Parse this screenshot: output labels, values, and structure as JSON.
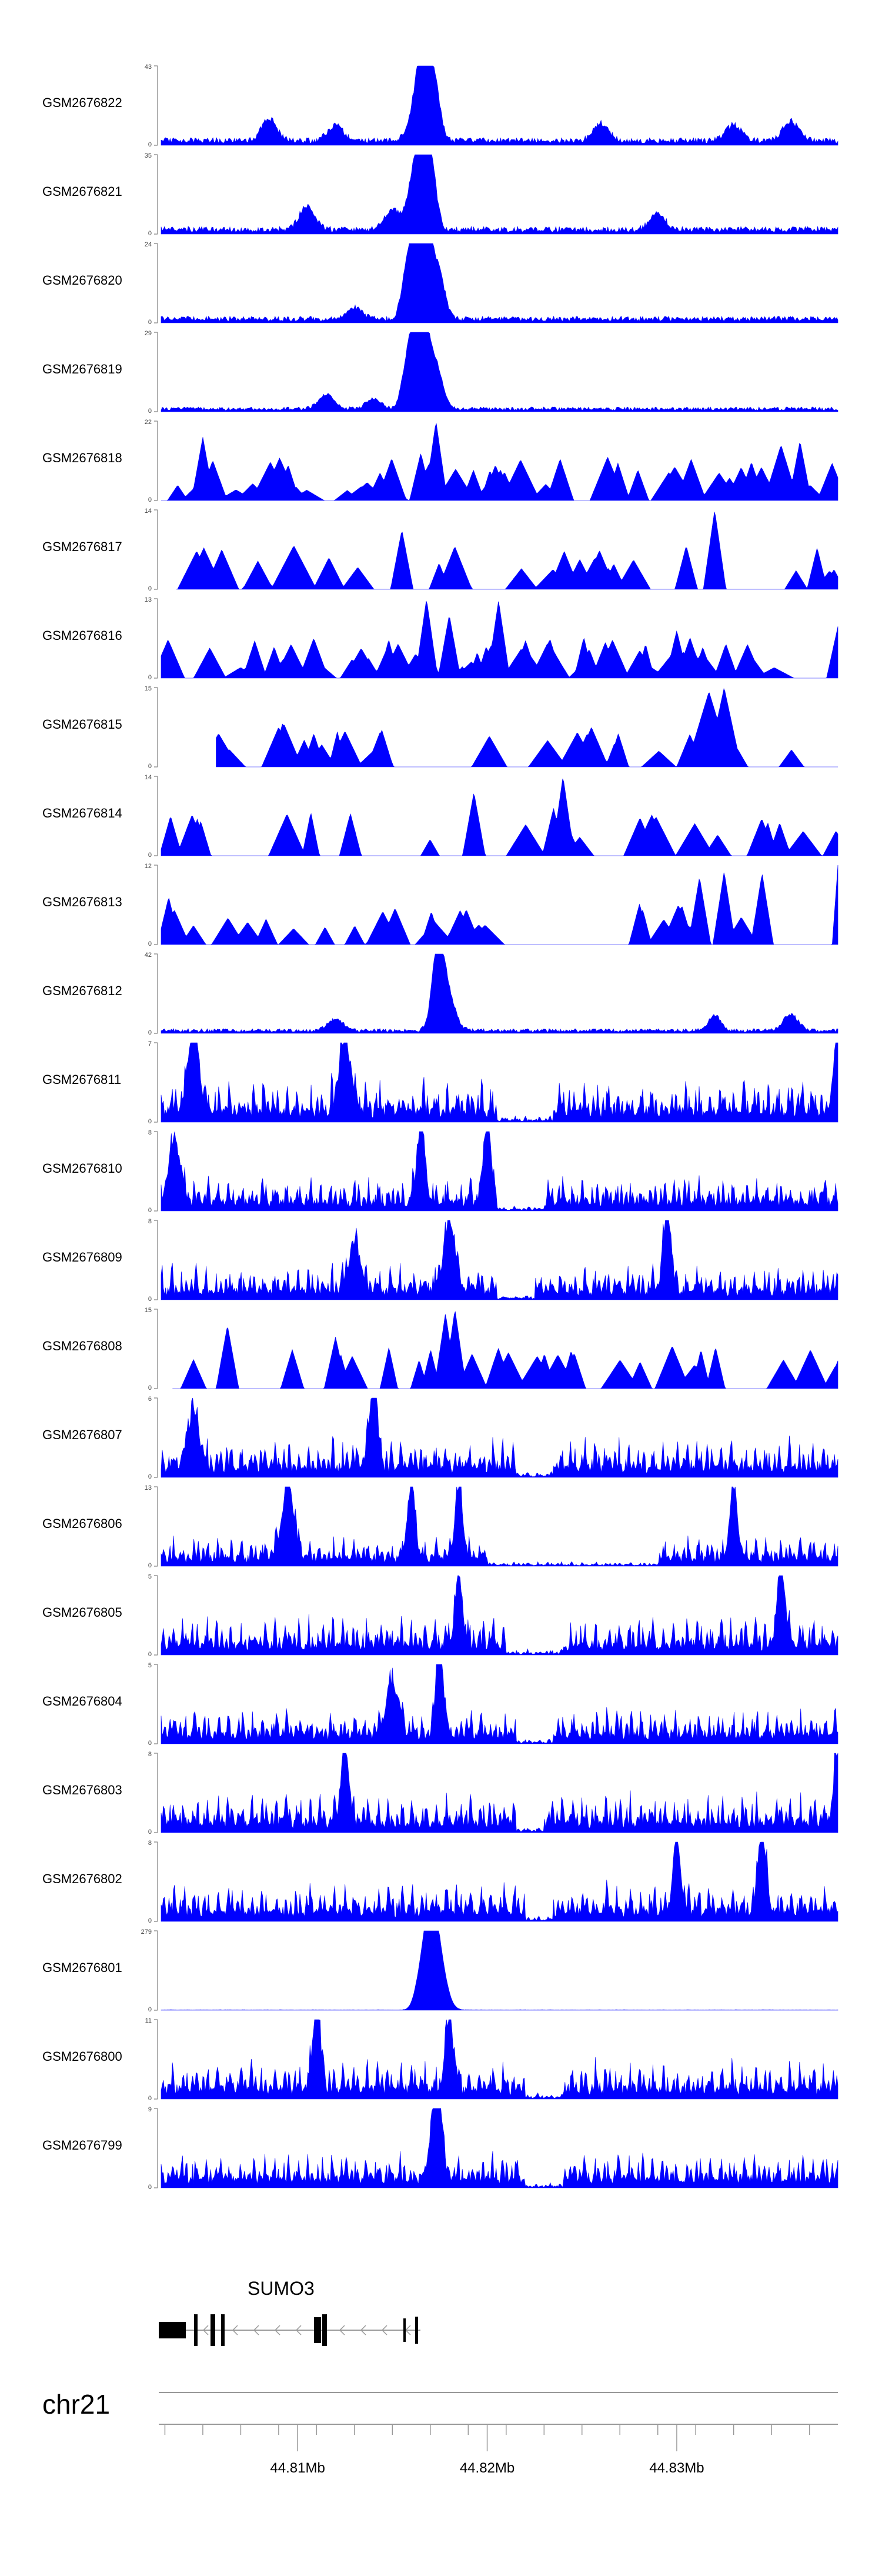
{
  "chart_data": {
    "type": "area",
    "title": "",
    "xlabel": "",
    "ylabel": "",
    "xlim": [
      44.8028,
      44.8385
    ],
    "x_ticks": [
      44.81,
      44.82,
      44.83
    ],
    "x_tick_labels": [
      "44.81Mb",
      "44.82Mb",
      "44.83Mb"
    ],
    "chromosome": "chr21",
    "gene": {
      "name": "SUMO3"
    },
    "grid": false,
    "legend": "none",
    "fill_color": "#0000ff",
    "tracks": [
      {
        "name": "GSM2676822",
        "ymax": 43,
        "ymax_label": "43",
        "ymin_label": "0",
        "peaks": [
          {
            "x": 44.8166,
            "h": 1.0,
            "w": 0.0003
          },
          {
            "x": 44.8172,
            "h": 0.75,
            "w": 0.0003
          },
          {
            "x": 44.8162,
            "h": 0.35,
            "w": 0.0004
          },
          {
            "x": 44.8085,
            "h": 0.28,
            "w": 0.0004
          },
          {
            "x": 44.812,
            "h": 0.2,
            "w": 0.0004
          },
          {
            "x": 44.826,
            "h": 0.22,
            "w": 0.0004
          },
          {
            "x": 44.833,
            "h": 0.2,
            "w": 0.0004
          },
          {
            "x": 44.836,
            "h": 0.25,
            "w": 0.0004
          }
        ],
        "baseline": 0.08,
        "seed": 11
      },
      {
        "name": "GSM2676821",
        "ymax": 35,
        "ymax_label": "35",
        "ymin_label": "0",
        "peaks": [
          {
            "x": 44.8165,
            "h": 1.0,
            "w": 0.0003
          },
          {
            "x": 44.817,
            "h": 0.85,
            "w": 0.0003
          },
          {
            "x": 44.816,
            "h": 0.45,
            "w": 0.0003
          },
          {
            "x": 44.8105,
            "h": 0.3,
            "w": 0.0004
          },
          {
            "x": 44.815,
            "h": 0.25,
            "w": 0.0004
          },
          {
            "x": 44.829,
            "h": 0.2,
            "w": 0.0004
          }
        ],
        "baseline": 0.08,
        "seed": 23
      },
      {
        "name": "GSM2676820",
        "ymax": 24,
        "ymax_label": "24",
        "ymin_label": "0",
        "peaks": [
          {
            "x": 44.8163,
            "h": 1.0,
            "w": 0.0003
          },
          {
            "x": 44.8169,
            "h": 0.95,
            "w": 0.0003
          },
          {
            "x": 44.8158,
            "h": 0.6,
            "w": 0.0003
          },
          {
            "x": 44.8175,
            "h": 0.5,
            "w": 0.0003
          },
          {
            "x": 44.813,
            "h": 0.15,
            "w": 0.0004
          }
        ],
        "baseline": 0.07,
        "seed": 37
      },
      {
        "name": "GSM2676819",
        "ymax": 29,
        "ymax_label": "29",
        "ymin_label": "0",
        "peaks": [
          {
            "x": 44.8163,
            "h": 1.0,
            "w": 0.0003
          },
          {
            "x": 44.8168,
            "h": 0.8,
            "w": 0.0003
          },
          {
            "x": 44.8158,
            "h": 0.55,
            "w": 0.0003
          },
          {
            "x": 44.8174,
            "h": 0.45,
            "w": 0.0003
          },
          {
            "x": 44.8115,
            "h": 0.18,
            "w": 0.0004
          },
          {
            "x": 44.814,
            "h": 0.12,
            "w": 0.0004
          }
        ],
        "baseline": 0.05,
        "seed": 41
      },
      {
        "name": "GSM2676818",
        "ymax": 22,
        "ymax_label": "22",
        "ymin_label": "0",
        "peaks": [
          {
            "x": 44.8173,
            "h": 1.0,
            "w": 0.0002
          },
          {
            "x": 44.805,
            "h": 0.8,
            "w": 0.0002
          },
          {
            "x": 44.8355,
            "h": 0.7,
            "w": 0.0003
          },
          {
            "x": 44.8365,
            "h": 0.75,
            "w": 0.0002
          },
          {
            "x": 44.8165,
            "h": 0.6,
            "w": 0.0002
          },
          {
            "x": 44.8095,
            "h": 0.45,
            "w": 0.0002
          }
        ],
        "spiky": 0.45,
        "seed": 53
      },
      {
        "name": "GSM2676817",
        "ymax": 14,
        "ymax_label": "14",
        "ymin_label": "0",
        "peaks": [
          {
            "x": 44.832,
            "h": 1.0,
            "w": 0.0002
          },
          {
            "x": 44.8155,
            "h": 0.75,
            "w": 0.0002
          },
          {
            "x": 44.8098,
            "h": 0.55,
            "w": 0.0004
          },
          {
            "x": 44.8305,
            "h": 0.55,
            "w": 0.0002
          },
          {
            "x": 44.806,
            "h": 0.5,
            "w": 0.0003
          }
        ],
        "sparse": true,
        "xstart": 44.8036,
        "seed": 67
      },
      {
        "name": "GSM2676816",
        "ymax": 13,
        "ymax_label": "13",
        "ymin_label": "0",
        "peaks": [
          {
            "x": 44.8168,
            "h": 1.0,
            "w": 0.0002
          },
          {
            "x": 44.8206,
            "h": 0.98,
            "w": 0.0002
          },
          {
            "x": 44.818,
            "h": 0.8,
            "w": 0.0002
          },
          {
            "x": 44.8385,
            "h": 0.65,
            "w": 0.0002
          },
          {
            "x": 44.83,
            "h": 0.6,
            "w": 0.0002
          }
        ],
        "spiky": 0.45,
        "seed": 71
      },
      {
        "name": "GSM2676815",
        "ymax": 15,
        "ymax_label": "15",
        "ymin_label": "0",
        "peaks": [
          {
            "x": 44.8325,
            "h": 1.0,
            "w": 0.0003
          },
          {
            "x": 44.8317,
            "h": 0.95,
            "w": 0.0004
          },
          {
            "x": 44.809,
            "h": 0.5,
            "w": 0.0003
          },
          {
            "x": 44.8255,
            "h": 0.5,
            "w": 0.0003
          },
          {
            "x": 44.8125,
            "h": 0.45,
            "w": 0.0003
          }
        ],
        "sparse": true,
        "xstart": 44.8057,
        "seed": 83
      },
      {
        "name": "GSM2676814",
        "ymax": 14,
        "ymax_label": "14",
        "ymin_label": "0",
        "peaks": [
          {
            "x": 44.824,
            "h": 1.0,
            "w": 0.0002
          },
          {
            "x": 44.8193,
            "h": 0.8,
            "w": 0.0002
          },
          {
            "x": 44.8235,
            "h": 0.6,
            "w": 0.0002
          },
          {
            "x": 44.8033,
            "h": 0.5,
            "w": 0.0002
          }
        ],
        "sparse": true,
        "xstart": 44.8028,
        "seed": 97
      },
      {
        "name": "GSM2676813",
        "ymax": 12,
        "ymax_label": "12",
        "ymin_label": "0",
        "peaks": [
          {
            "x": 44.8385,
            "h": 1.0,
            "w": 0.0001
          },
          {
            "x": 44.8325,
            "h": 0.92,
            "w": 0.0002
          },
          {
            "x": 44.8345,
            "h": 0.9,
            "w": 0.0002
          },
          {
            "x": 44.8312,
            "h": 0.85,
            "w": 0.0002
          },
          {
            "x": 44.8032,
            "h": 0.6,
            "w": 0.0002
          }
        ],
        "sparse": true,
        "xstart": 44.8028,
        "seed": 101
      },
      {
        "name": "GSM2676812",
        "ymax": 42,
        "ymax_label": "42",
        "ymin_label": "0",
        "peaks": [
          {
            "x": 44.8174,
            "h": 1.0,
            "w": 0.0003
          },
          {
            "x": 44.8179,
            "h": 0.45,
            "w": 0.0004
          },
          {
            "x": 44.836,
            "h": 0.2,
            "w": 0.0004
          },
          {
            "x": 44.832,
            "h": 0.2,
            "w": 0.0003
          },
          {
            "x": 44.812,
            "h": 0.15,
            "w": 0.0004
          }
        ],
        "baseline": 0.05,
        "seed": 113
      },
      {
        "name": "GSM2676811",
        "ymax": 7,
        "ymax_label": "7",
        "ymin_label": "0",
        "peaks": [
          {
            "x": 44.8045,
            "h": 0.95,
            "w": 0.0003
          },
          {
            "x": 44.8125,
            "h": 0.9,
            "w": 0.0003
          },
          {
            "x": 44.8385,
            "h": 0.9,
            "w": 0.0002
          }
        ],
        "dense": 0.5,
        "dip": [
          44.8205,
          44.8235
        ],
        "seed": 127
      },
      {
        "name": "GSM2676810",
        "ymax": 8,
        "ymax_label": "8",
        "ymin_label": "0",
        "peaks": [
          {
            "x": 44.8165,
            "h": 1.0,
            "w": 0.0002
          },
          {
            "x": 44.82,
            "h": 0.95,
            "w": 0.0002
          },
          {
            "x": 44.8035,
            "h": 0.8,
            "w": 0.0003
          }
        ],
        "dense": 0.4,
        "dip": [
          44.8205,
          44.823
        ],
        "seed": 131
      },
      {
        "name": "GSM2676809",
        "ymax": 8,
        "ymax_label": "8",
        "ymin_label": "0",
        "peaks": [
          {
            "x": 44.8295,
            "h": 1.0,
            "w": 0.0002
          },
          {
            "x": 44.818,
            "h": 0.85,
            "w": 0.0003
          },
          {
            "x": 44.813,
            "h": 0.6,
            "w": 0.0003
          }
        ],
        "dense": 0.4,
        "dip": [
          44.8205,
          44.8225
        ],
        "seed": 139
      },
      {
        "name": "GSM2676808",
        "ymax": 15,
        "ymax_label": "15",
        "ymin_label": "0",
        "peaks": [
          {
            "x": 44.8183,
            "h": 1.0,
            "w": 0.0002
          },
          {
            "x": 44.8178,
            "h": 0.95,
            "w": 0.0002
          },
          {
            "x": 44.8063,
            "h": 0.8,
            "w": 0.0002
          },
          {
            "x": 44.812,
            "h": 0.65,
            "w": 0.0002
          },
          {
            "x": 44.8385,
            "h": 0.35,
            "w": 0.0002
          }
        ],
        "sparse": true,
        "xstart": 44.8034,
        "seed": 149
      },
      {
        "name": "GSM2676807",
        "ymax": 6,
        "ymax_label": "6",
        "ymin_label": "0",
        "peaks": [
          {
            "x": 44.814,
            "h": 1.0,
            "w": 0.0002
          },
          {
            "x": 44.8045,
            "h": 0.7,
            "w": 0.0003
          }
        ],
        "dense": 0.45,
        "dip": [
          44.8215,
          44.8235
        ],
        "seed": 151
      },
      {
        "name": "GSM2676806",
        "ymax": 13,
        "ymax_label": "13",
        "ymin_label": "0",
        "peaks": [
          {
            "x": 44.8095,
            "h": 0.95,
            "w": 0.0003
          },
          {
            "x": 44.816,
            "h": 0.95,
            "w": 0.0002
          },
          {
            "x": 44.8185,
            "h": 0.9,
            "w": 0.0002
          },
          {
            "x": 44.833,
            "h": 0.9,
            "w": 0.0002
          }
        ],
        "dense": 0.35,
        "dip": [
          44.82,
          44.829
        ],
        "seed": 163
      },
      {
        "name": "GSM2676805",
        "ymax": 5,
        "ymax_label": "5",
        "ymin_label": "0",
        "peaks": [
          {
            "x": 44.8355,
            "h": 1.0,
            "w": 0.0002
          },
          {
            "x": 44.8185,
            "h": 0.85,
            "w": 0.0002
          }
        ],
        "dense": 0.45,
        "dip": [
          44.821,
          44.824
        ],
        "seed": 173
      },
      {
        "name": "GSM2676804",
        "ymax": 5,
        "ymax_label": "5",
        "ymin_label": "0",
        "peaks": [
          {
            "x": 44.8175,
            "h": 1.0,
            "w": 0.0002
          },
          {
            "x": 44.815,
            "h": 0.65,
            "w": 0.0003
          }
        ],
        "dense": 0.4,
        "dip": [
          44.8215,
          44.8235
        ],
        "seed": 181
      },
      {
        "name": "GSM2676803",
        "ymax": 8,
        "ymax_label": "8",
        "ymin_label": "0",
        "peaks": [
          {
            "x": 44.8125,
            "h": 1.0,
            "w": 0.0002
          },
          {
            "x": 44.8385,
            "h": 0.85,
            "w": 0.0002
          }
        ],
        "dense": 0.45,
        "dip": [
          44.8215,
          44.823
        ],
        "seed": 191
      },
      {
        "name": "GSM2676802",
        "ymax": 8,
        "ymax_label": "8",
        "ymin_label": "0",
        "peaks": [
          {
            "x": 44.8345,
            "h": 1.0,
            "w": 0.0002
          },
          {
            "x": 44.83,
            "h": 0.85,
            "w": 0.0002
          }
        ],
        "dense": 0.45,
        "dip": [
          44.822,
          44.8235
        ],
        "seed": 197
      },
      {
        "name": "GSM2676801",
        "ymax": 279,
        "ymax_label": "279",
        "ymin_label": "0",
        "peaks": [
          {
            "x": 44.817,
            "h": 1.0,
            "w": 0.0003
          },
          {
            "x": 44.8174,
            "h": 0.7,
            "w": 0.0004
          },
          {
            "x": 44.8165,
            "h": 0.4,
            "w": 0.0003
          }
        ],
        "baseline": 0.005,
        "seed": 211
      },
      {
        "name": "GSM2676800",
        "ymax": 11,
        "ymax_label": "11",
        "ymin_label": "0",
        "peaks": [
          {
            "x": 44.811,
            "h": 1.0,
            "w": 0.0002
          },
          {
            "x": 44.818,
            "h": 0.95,
            "w": 0.0002
          }
        ],
        "dense": 0.45,
        "dip": [
          44.822,
          44.824
        ],
        "seed": 223
      },
      {
        "name": "GSM2676799",
        "ymax": 9,
        "ymax_label": "9",
        "ymin_label": "0",
        "peaks": [
          {
            "x": 44.8172,
            "h": 1.0,
            "w": 0.0002
          },
          {
            "x": 44.8175,
            "h": 0.75,
            "w": 0.0002
          }
        ],
        "dense": 0.4,
        "dip": [
          44.822,
          44.824
        ],
        "seed": 227
      }
    ]
  }
}
